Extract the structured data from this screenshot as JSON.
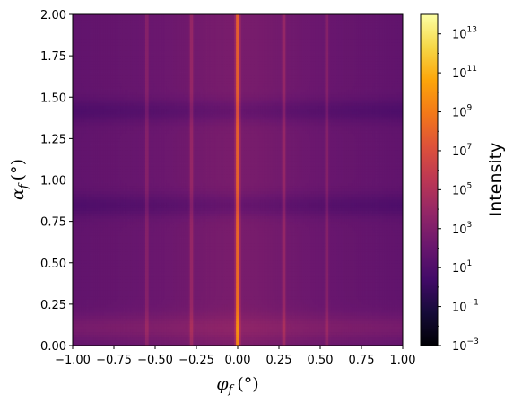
{
  "chart_data": {
    "type": "heatmap",
    "title": "",
    "xlabel": "φ_f (°)",
    "ylabel": "α_f (°)",
    "x_label_text": {
      "symbol": "φ",
      "sub": "f",
      "unit": "(°)"
    },
    "y_label_text": {
      "symbol": "α",
      "sub": "f",
      "unit": "(°)"
    },
    "xlim": [
      -1.0,
      1.0
    ],
    "ylim": [
      0.0,
      2.0
    ],
    "xticks": [
      "−1.00",
      "−0.75",
      "−0.50",
      "−0.25",
      "0.00",
      "0.25",
      "0.50",
      "0.75",
      "1.00"
    ],
    "xtick_values": [
      -1.0,
      -0.75,
      -0.5,
      -0.25,
      0.0,
      0.25,
      0.5,
      0.75,
      1.0
    ],
    "yticks": [
      "0.00",
      "0.25",
      "0.50",
      "0.75",
      "1.00",
      "1.25",
      "1.50",
      "1.75",
      "2.00"
    ],
    "ytick_values": [
      0.0,
      0.25,
      0.5,
      0.75,
      1.0,
      1.25,
      1.5,
      1.75,
      2.0
    ],
    "colormap": "inferno",
    "colorscale": "log",
    "colorbar": {
      "label": "Intensity",
      "range_exponents": [
        -3,
        14
      ],
      "tick_exponents": [
        -3,
        -1,
        1,
        3,
        5,
        7,
        9,
        11,
        13
      ],
      "tick_base": "10"
    },
    "features": {
      "rods_phi": [
        0.0,
        -0.28,
        0.28,
        -0.55,
        0.54
      ],
      "dark_fringes_alpha": [
        0.85,
        1.42
      ],
      "bright_band_alpha": [
        0.02,
        0.2
      ]
    },
    "grid": false,
    "legend": "none"
  }
}
